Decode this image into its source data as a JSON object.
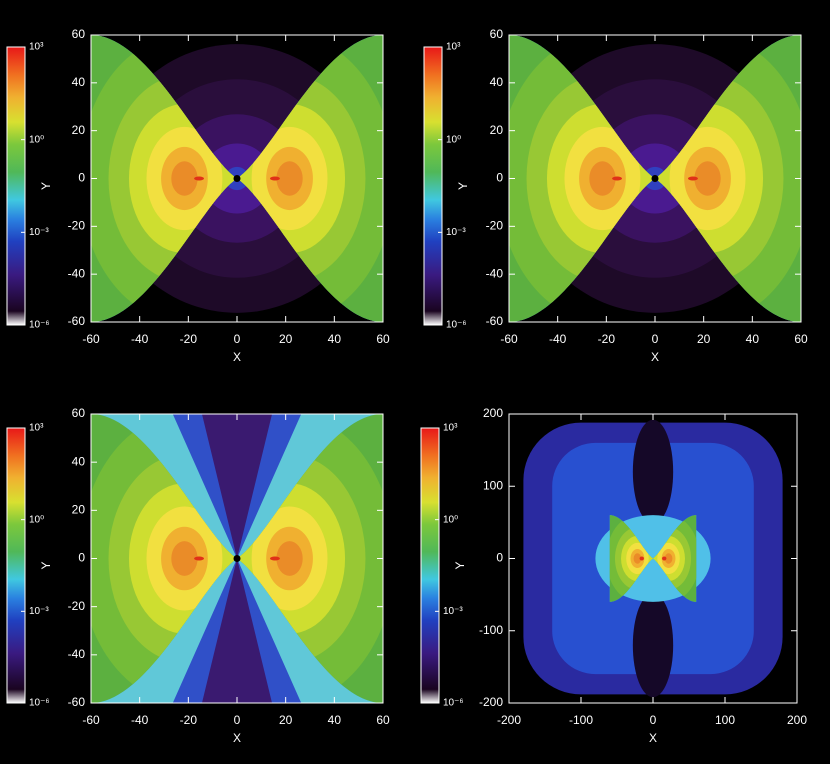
{
  "chart_data": [
    {
      "type": "heatmap",
      "xlabel": "X",
      "ylabel": "Y",
      "xlim": [
        -60,
        60
      ],
      "ylim": [
        -60,
        60
      ],
      "xticks": [
        -60,
        -40,
        -20,
        0,
        20,
        40,
        60
      ],
      "yticks": [
        -60,
        -40,
        -20,
        0,
        20,
        40,
        60
      ],
      "colorbar": {
        "log": true,
        "lim": [
          1e-06,
          1000
        ],
        "ticks": [
          {
            "value": 1000,
            "label": "10³"
          },
          {
            "value": 1,
            "label": "10⁰"
          },
          {
            "value": 0.001,
            "label": "10⁻³"
          },
          {
            "value": 1e-06,
            "label": "10⁻⁶"
          }
        ]
      }
    },
    {
      "type": "heatmap",
      "xlabel": "X",
      "ylabel": "Y",
      "xlim": [
        -60,
        60
      ],
      "ylim": [
        -60,
        60
      ],
      "xticks": [
        -60,
        -40,
        -20,
        0,
        20,
        40,
        60
      ],
      "yticks": [
        -60,
        -40,
        -20,
        0,
        20,
        40,
        60
      ],
      "colorbar": {
        "log": true,
        "lim": [
          1e-06,
          1000
        ],
        "ticks": [
          {
            "value": 1000,
            "label": "10³"
          },
          {
            "value": 1,
            "label": "10⁰"
          },
          {
            "value": 0.001,
            "label": "10⁻³"
          },
          {
            "value": 1e-06,
            "label": "10⁻⁶"
          }
        ]
      }
    },
    {
      "type": "heatmap",
      "xlabel": "X",
      "ylabel": "Y",
      "xlim": [
        -60,
        60
      ],
      "ylim": [
        -60,
        60
      ],
      "xticks": [
        -60,
        -40,
        -20,
        0,
        20,
        40,
        60
      ],
      "yticks": [
        -60,
        -40,
        -20,
        0,
        20,
        40,
        60
      ],
      "colorbar": {
        "log": true,
        "lim": [
          1e-06,
          1000
        ],
        "ticks": [
          {
            "value": 1000,
            "label": "10³"
          },
          {
            "value": 1,
            "label": "10⁰"
          },
          {
            "value": 0.001,
            "label": "10⁻³"
          },
          {
            "value": 1e-06,
            "label": "10⁻⁶"
          }
        ]
      }
    },
    {
      "type": "heatmap",
      "xlabel": "X",
      "ylabel": "Y",
      "xlim": [
        -200,
        200
      ],
      "ylim": [
        -200,
        200
      ],
      "xticks": [
        -200,
        -100,
        0,
        100,
        200
      ],
      "yticks": [
        -200,
        -100,
        0,
        100,
        200
      ],
      "colorbar": {
        "log": true,
        "lim": [
          1e-06,
          1000
        ],
        "ticks": [
          {
            "value": 1000,
            "label": "10³"
          },
          {
            "value": 1,
            "label": "10⁰"
          },
          {
            "value": 0.001,
            "label": "10⁻³"
          },
          {
            "value": 1e-06,
            "label": "10⁻⁶"
          }
        ]
      }
    }
  ]
}
